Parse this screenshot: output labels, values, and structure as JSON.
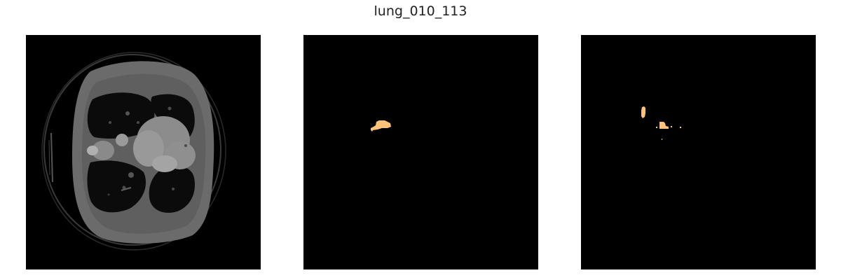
{
  "figure": {
    "title": "lung_010_113"
  },
  "panels": [
    {
      "name": "ct-slice",
      "kind": "grayscale-image"
    },
    {
      "name": "ground-truth-mask",
      "kind": "segmentation-mask"
    },
    {
      "name": "predicted-mask",
      "kind": "segmentation-mask"
    }
  ],
  "colors": {
    "background": "#000000",
    "mask": "#ffc27a",
    "body_tissue": "#6e6e6e",
    "lung_field": "#0c0c0c",
    "organ_bright": "#9a9a9a"
  }
}
